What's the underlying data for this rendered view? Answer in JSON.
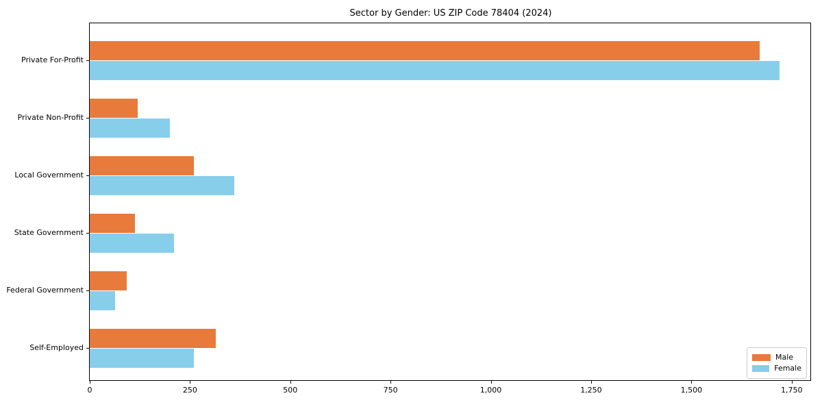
{
  "chart_data": {
    "type": "bar",
    "orientation": "horizontal",
    "title": "Sector by Gender: US ZIP Code 78404 (2024)",
    "xlabel": "",
    "ylabel": "",
    "categories": [
      "Private For-Profit",
      "Private Non-Profit",
      "Local Government",
      "State Government",
      "Federal Government",
      "Self-Employed"
    ],
    "series": [
      {
        "name": "Male",
        "color": "#e87a3c",
        "values": [
          1670,
          120,
          260,
          113,
          93,
          314
        ]
      },
      {
        "name": "Female",
        "color": "#87ceeb",
        "values": [
          1719,
          200,
          360,
          210,
          63,
          260
        ]
      }
    ],
    "xlim": [
      0,
      1800
    ],
    "x_ticks": {
      "values": [
        0,
        250,
        500,
        750,
        1000,
        1250,
        1500,
        1750
      ],
      "labels": [
        "0",
        "250",
        "500",
        "750",
        "1,000",
        "1,250",
        "1,500",
        "1,750"
      ]
    },
    "grid": false,
    "legend_position": "lower right"
  }
}
